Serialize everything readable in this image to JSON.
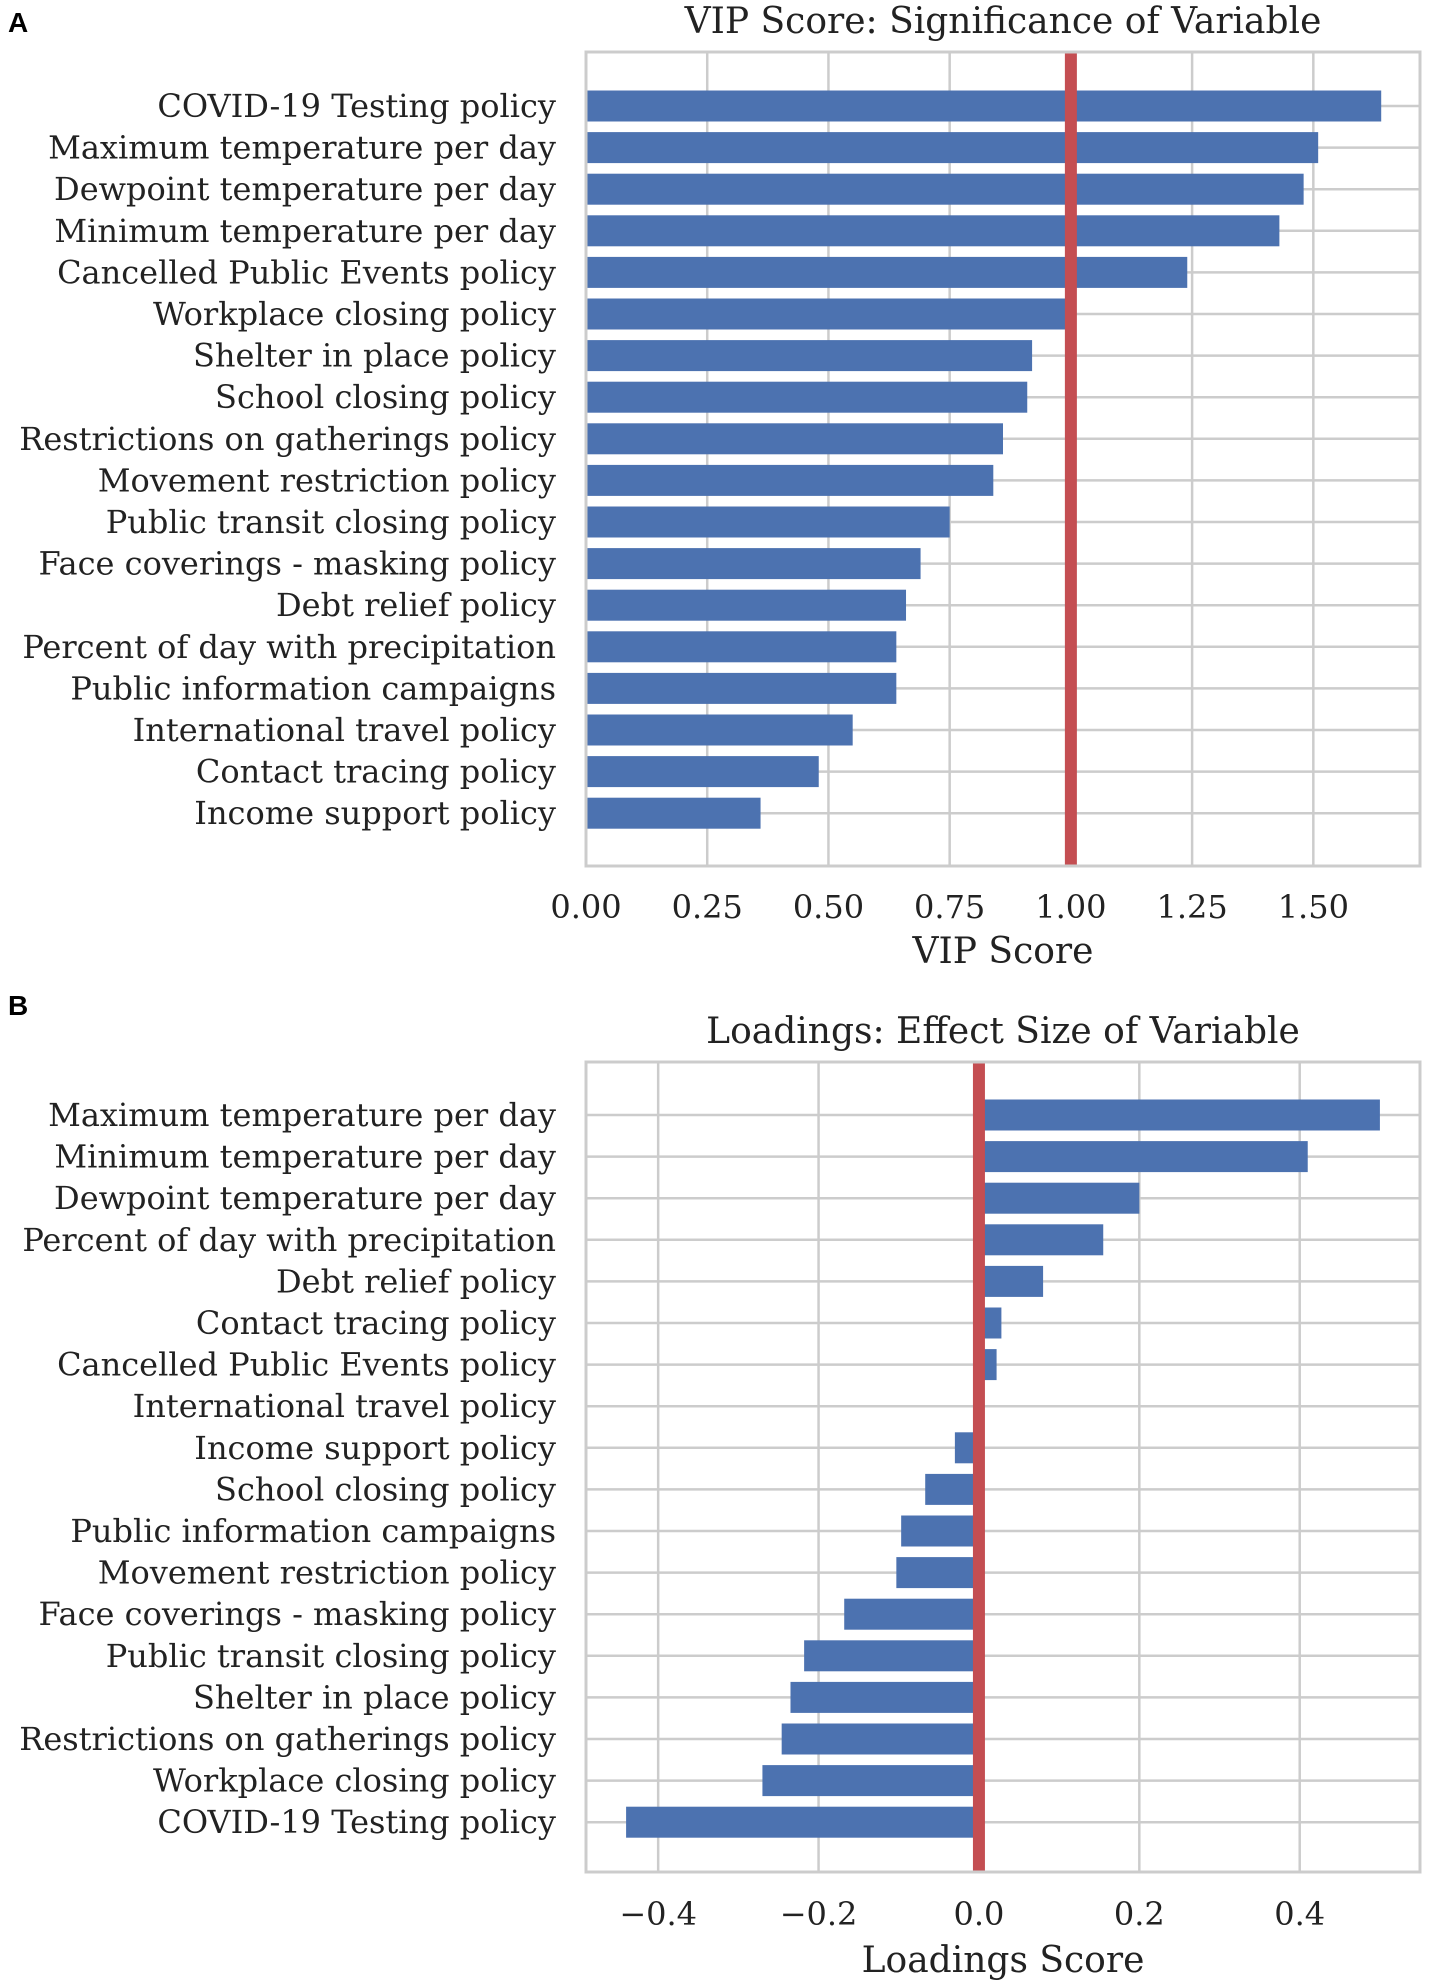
{
  "figure": {
    "panel_labels": [
      "A",
      "B"
    ]
  },
  "chart_data": [
    {
      "type": "bar",
      "orientation": "horizontal",
      "title": "VIP Score: Significance of Variable",
      "xlabel": "VIP Score",
      "ylabel": "",
      "xlim": [
        0,
        1.72
      ],
      "xticks": [
        0,
        0.25,
        0.5,
        0.75,
        1.0,
        1.25,
        1.5
      ],
      "xtick_labels": [
        "0.00",
        "0.25",
        "0.50",
        "0.75",
        "1.00",
        "1.25",
        "1.50"
      ],
      "reference_line": {
        "x": 1.0,
        "color": "#c44e52"
      },
      "bar_color": "#4c72b0",
      "grid": true,
      "categories": [
        "COVID-19 Testing policy",
        "Maximum temperature per day",
        "Dewpoint temperature per day",
        "Minimum temperature per day",
        "Cancelled Public Events policy",
        "Workplace closing policy",
        "Shelter in place policy",
        "School closing policy",
        "Restrictions on gatherings policy",
        "Movement restriction policy",
        "Public transit closing policy",
        "Face coverings - masking policy",
        "Debt relief policy",
        "Percent of day with precipitation",
        "Public information campaigns",
        "International travel policy",
        "Contact tracing policy",
        "Income support policy"
      ],
      "values": [
        1.64,
        1.51,
        1.48,
        1.43,
        1.24,
        0.99,
        0.92,
        0.91,
        0.86,
        0.84,
        0.75,
        0.69,
        0.66,
        0.64,
        0.64,
        0.55,
        0.48,
        0.36
      ]
    },
    {
      "type": "bar",
      "orientation": "horizontal",
      "title": "Loadings: Effect Size of Variable",
      "xlabel": "Loadings Score",
      "ylabel": "",
      "xlim": [
        -0.49,
        0.55
      ],
      "xticks": [
        -0.4,
        -0.2,
        0.0,
        0.2,
        0.4
      ],
      "xtick_labels": [
        "−0.4",
        "−0.2",
        "0.0",
        "0.2",
        "0.4"
      ],
      "reference_line": {
        "x": 0.0,
        "color": "#c44e52"
      },
      "bar_color": "#4c72b0",
      "grid": true,
      "categories": [
        "Maximum temperature per day",
        "Minimum temperature per day",
        "Dewpoint temperature per day",
        "Percent of day with precipitation",
        "Debt relief policy",
        "Contact tracing policy",
        "Cancelled Public Events policy",
        "International travel policy",
        "Income support policy",
        "School closing policy",
        "Public information campaigns",
        "Movement restriction policy",
        "Face coverings - masking policy",
        "Public transit closing policy",
        "Shelter in place policy",
        "Restrictions on gatherings policy",
        "Workplace closing policy",
        "COVID-19 Testing policy"
      ],
      "values": [
        0.5,
        0.41,
        0.2,
        0.155,
        0.08,
        0.028,
        0.022,
        0.0,
        -0.03,
        -0.067,
        -0.097,
        -0.103,
        -0.168,
        -0.218,
        -0.235,
        -0.246,
        -0.27,
        -0.44
      ]
    }
  ]
}
